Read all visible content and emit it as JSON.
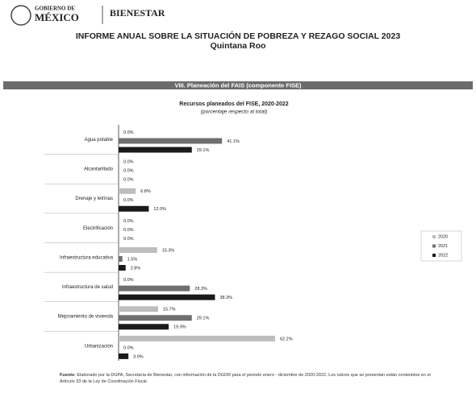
{
  "header": {
    "gov_line1": "GOBIERNO DE",
    "gov_line2": "MÉXICO",
    "agency": "BIENESTAR",
    "title": "INFORME ANUAL SOBRE LA SITUACIÓN DE POBREZA Y REZAGO SOCIAL 2023",
    "subtitle": "Quintana Roo"
  },
  "section": "VIII. Planeación del FAIS (componente FISE)",
  "chart_data": {
    "type": "bar",
    "orientation": "horizontal",
    "title": "Recursos planeados del FISE, 2020-2022",
    "subtitle": "(porcentaje respecto al total)",
    "categories": [
      "Agua potable",
      "Alcantarillado",
      "Drenaje y letrinas",
      "Electrificación",
      "Infraestructura educativa",
      "Infraestructura de salud",
      "Mejoramiento de vivienda",
      "Urbanización"
    ],
    "series": [
      {
        "name": "2020",
        "color": "#bdbdbd",
        "values": [
          0,
          0,
          6.8,
          0,
          15.3,
          0,
          15.7,
          62.2
        ],
        "value_labels": [
          "0.0%",
          "0.0%",
          "6.8%",
          "0.0%",
          "15.3%",
          "0.0%",
          "15.7%",
          "62.2%"
        ]
      },
      {
        "name": "2021",
        "color": "#6f6f6f",
        "values": [
          41.1,
          0,
          0,
          0,
          1.5,
          28.3,
          29.1,
          0
        ],
        "value_labels": [
          "41.1%",
          "0.0%",
          "0.0%",
          "0.0%",
          "1.5%",
          "28.3%",
          "29.1%",
          "0.0%"
        ]
      },
      {
        "name": "2022",
        "color": "#1a1a1a",
        "values": [
          29.1,
          0,
          12.0,
          0,
          2.8,
          38.3,
          19.9,
          3.9
        ],
        "value_labels": [
          "29.1%",
          "0.0%",
          "12.0%",
          "0.0%",
          "2.8%",
          "38.3%",
          "19.9%",
          "3.9%"
        ]
      }
    ],
    "legend": "right"
  },
  "footnote": {
    "label": "Fuente:",
    "text": "Elaborado por la DGPA, Secretaría de Bienestar, con información de la DGDR para el periodo enero - diciembre de 2020-2022. Los rubros que se presentan están contenidos en el Artículo 33 de la Ley de Coordinación Fiscal."
  }
}
